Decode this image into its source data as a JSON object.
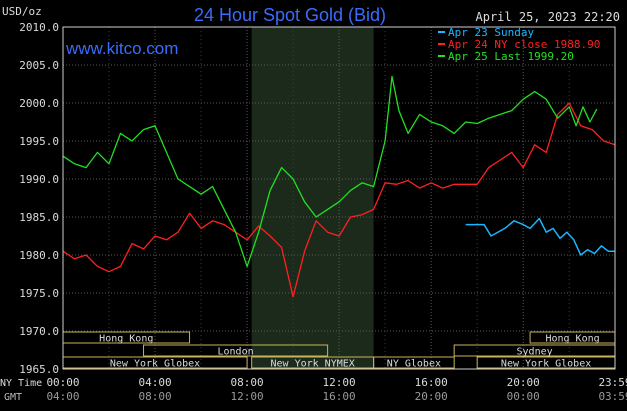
{
  "header": {
    "title": "24 Hour Spot Gold (Bid)",
    "unit": "USD/oz",
    "timestamp": "April 25, 2023 22:20",
    "watermark": "www.kitco.com"
  },
  "legend": [
    {
      "text": "Apr 23 Sunday",
      "color": "#1ab6ff"
    },
    {
      "text": "Apr 24 NY close 1988.90",
      "color": "#ff2020"
    },
    {
      "text": "Apr 25 Last 1999.20",
      "color": "#22e022"
    }
  ],
  "x_axis": {
    "row1_label": "NY Time",
    "row2_label": "GMT",
    "row1_ticks": [
      "00:00",
      "04:00",
      "08:00",
      "12:00",
      "16:00",
      "20:00",
      "23:59"
    ],
    "row2_ticks": [
      "04:00",
      "08:00",
      "12:00",
      "16:00",
      "20:00",
      "00:00",
      "03:59"
    ]
  },
  "sessions": [
    {
      "row": 0,
      "label": "Hong Kong",
      "start": 0.0,
      "end": 5.5
    },
    {
      "row": 0,
      "label": "Hong Kong",
      "start": 20.3,
      "end": 23.99
    },
    {
      "row": 1,
      "label": "London",
      "start": 3.5,
      "end": 11.5
    },
    {
      "row": 1,
      "label": "Sydney",
      "start": 17.0,
      "end": 23.99
    },
    {
      "row": 2,
      "label": "New York Globex",
      "start": 0.0,
      "end": 8.0
    },
    {
      "row": 2,
      "label": "New York NYMEX",
      "start": 8.2,
      "end": 13.5
    },
    {
      "row": 2,
      "label": "NY Globex",
      "start": 13.5,
      "end": 17.0
    },
    {
      "row": 2,
      "label": "New York Globex",
      "start": 18.0,
      "end": 23.99
    }
  ],
  "chart_data": {
    "type": "line",
    "title": "24 Hour Spot Gold (Bid)",
    "ylabel": "USD/oz",
    "xlim": [
      0,
      23.99
    ],
    "ylim": [
      1965,
      2010
    ],
    "yticks": [
      "2010.0",
      "2005.0",
      "2000.0",
      "1995.0",
      "1990.0",
      "1985.0",
      "1980.0",
      "1975.0",
      "1970.0",
      "1965.0"
    ],
    "shaded_range": [
      8.2,
      13.5
    ],
    "grid": true,
    "legend_position": "top-right",
    "series": [
      {
        "name": "Apr 23 Sunday",
        "color": "#1ab6ff",
        "x": [
          17.5,
          18.3,
          18.6,
          19.2,
          19.6,
          20.0,
          20.3,
          20.7,
          21.0,
          21.3,
          21.6,
          21.9,
          22.2,
          22.5,
          22.8,
          23.1,
          23.4,
          23.7,
          23.99
        ],
        "y": [
          1984.0,
          1984.0,
          1982.5,
          1983.5,
          1984.5,
          1984.0,
          1983.5,
          1984.8,
          1983.0,
          1983.5,
          1982.2,
          1983.0,
          1982.0,
          1980.0,
          1980.7,
          1980.2,
          1981.2,
          1980.5,
          1980.5
        ]
      },
      {
        "name": "Apr 24 NY close 1988.90",
        "color": "#ff2020",
        "x": [
          0.0,
          0.5,
          1.0,
          1.5,
          2.0,
          2.5,
          3.0,
          3.5,
          4.0,
          4.5,
          5.0,
          5.5,
          6.0,
          6.5,
          7.0,
          7.5,
          8.0,
          8.5,
          9.0,
          9.5,
          10.0,
          10.5,
          11.0,
          11.5,
          12.0,
          12.5,
          13.0,
          13.5,
          14.0,
          14.5,
          15.0,
          15.5,
          16.0,
          16.5,
          17.0,
          17.5,
          18.0,
          18.5,
          19.0,
          19.5,
          20.0,
          20.5,
          21.0,
          21.5,
          22.0,
          22.5,
          23.0,
          23.5,
          23.99
        ],
        "y": [
          1980.5,
          1979.5,
          1980.0,
          1978.5,
          1977.8,
          1978.5,
          1981.5,
          1980.8,
          1982.5,
          1982.0,
          1983.0,
          1985.5,
          1983.5,
          1984.5,
          1984.0,
          1983.0,
          1982.0,
          1983.8,
          1982.5,
          1981.0,
          1974.5,
          1980.5,
          1984.5,
          1983.0,
          1982.5,
          1985.0,
          1985.3,
          1986.0,
          1989.5,
          1989.3,
          1989.8,
          1988.8,
          1989.5,
          1988.8,
          1989.3,
          1989.3,
          1989.3,
          1991.5,
          1992.5,
          1993.5,
          1991.5,
          1994.5,
          1993.5,
          1998.5,
          2000.0,
          1997.0,
          1996.5,
          1995.0,
          1994.5
        ]
      },
      {
        "name": "Apr 25 Last 1999.20",
        "color": "#22e022",
        "x": [
          0.0,
          0.5,
          1.0,
          1.5,
          2.0,
          2.5,
          3.0,
          3.5,
          4.0,
          4.5,
          5.0,
          5.5,
          6.0,
          6.5,
          7.0,
          7.5,
          8.0,
          8.5,
          9.0,
          9.5,
          10.0,
          10.5,
          11.0,
          11.5,
          12.0,
          12.5,
          13.0,
          13.5,
          14.0,
          14.3,
          14.6,
          15.0,
          15.5,
          16.0,
          16.5,
          17.0,
          17.5,
          18.0,
          18.5,
          19.0,
          19.5,
          20.0,
          20.5,
          21.0,
          21.5,
          22.0,
          22.3,
          22.6,
          22.9,
          23.2
        ],
        "y": [
          1993.0,
          1992.0,
          1991.5,
          1993.5,
          1992.0,
          1996.0,
          1995.0,
          1996.5,
          1997.0,
          1993.5,
          1990.0,
          1989.0,
          1988.0,
          1989.0,
          1986.0,
          1983.0,
          1978.5,
          1983.0,
          1988.5,
          1991.5,
          1990.0,
          1987.0,
          1985.0,
          1986.0,
          1987.0,
          1988.5,
          1989.5,
          1989.0,
          1995.0,
          2003.5,
          1999.0,
          1996.0,
          1998.5,
          1997.5,
          1997.0,
          1996.0,
          1997.5,
          1997.3,
          1998.0,
          1998.5,
          1999.0,
          2000.5,
          2001.5,
          2000.5,
          1998.0,
          1999.5,
          1997.0,
          1999.5,
          1997.5,
          1999.2
        ]
      }
    ]
  }
}
